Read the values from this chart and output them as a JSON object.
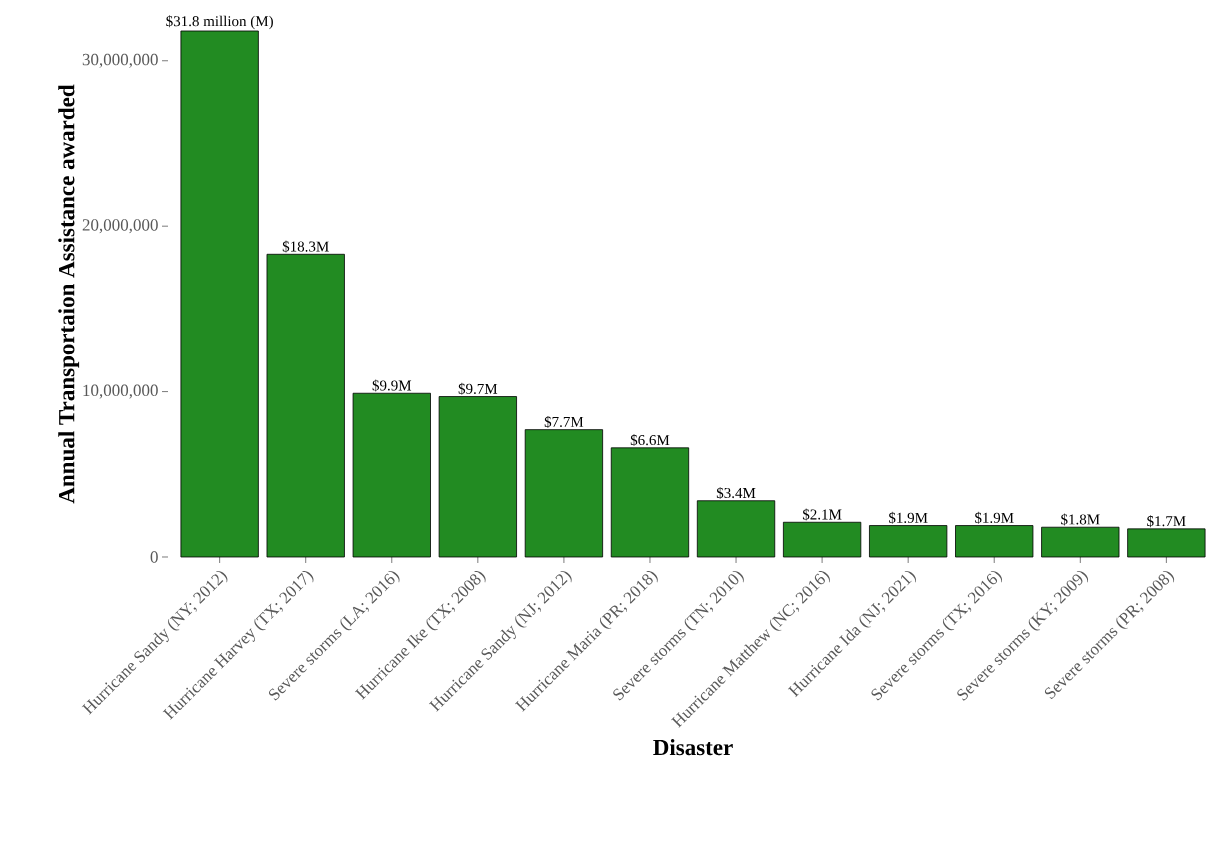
{
  "chart_data": {
    "type": "bar",
    "xlabel": "Disaster",
    "ylabel": "Annual Transportaion Assistance awarded",
    "categories": [
      "Hurricane Sandy (NY; 2012)",
      "Hurricane Harvey (TX; 2017)",
      "Severe storms (LA; 2016)",
      "Hurricane Ike (TX; 2008)",
      "Hurricane Sandy (NJ; 2012)",
      "Hurricane Maria (PR; 2018)",
      "Severe storms (TN; 2010)",
      "Hurricane Matthew (NC; 2016)",
      "Hurricane Ida (NJ; 2021)",
      "Severe storms (TX; 2016)",
      "Severe storms (KY; 2009)",
      "Severe storms (PR; 2008)"
    ],
    "values": [
      31800000,
      18300000,
      9900000,
      9700000,
      7700000,
      6600000,
      3400000,
      2100000,
      1900000,
      1900000,
      1800000,
      1700000
    ],
    "value_labels": [
      "$31.8 million (M)",
      "$18.3M",
      "$9.9M",
      "$9.7M",
      "$7.7M",
      "$6.6M",
      "$3.4M",
      "$2.1M",
      "$1.9M",
      "$1.9M",
      "$1.8M",
      "$1.7M"
    ],
    "color": "#228b22",
    "ylim": [
      0,
      31800000
    ],
    "yticks": [
      {
        "value": 0,
        "label": "0"
      },
      {
        "value": 10000000,
        "label": "10,000,000"
      },
      {
        "value": 20000000,
        "label": "20,000,000"
      },
      {
        "value": 30000000,
        "label": "30,000,000"
      }
    ]
  }
}
